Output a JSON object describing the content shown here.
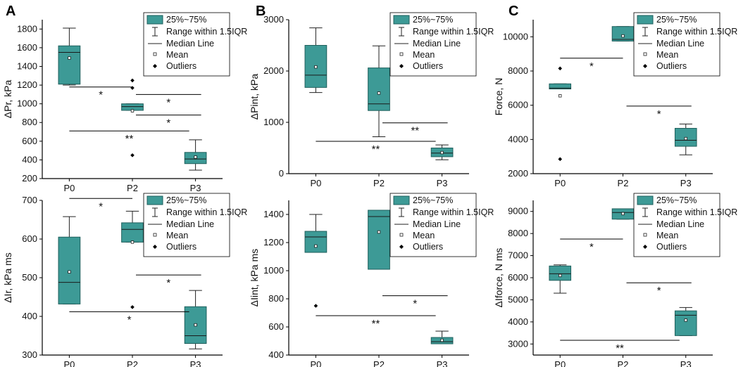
{
  "colors": {
    "box_fill": "#3d9a96",
    "box_stroke": "#1f5f5c",
    "axis": "#000000"
  },
  "legend": {
    "box_label": "25%~75%",
    "range_label": "Range within 1.5IQR",
    "median_label": "Median Line",
    "mean_label": "Mean",
    "outlier_label": "Outliers"
  },
  "chart_data": [
    {
      "panel": "A",
      "type": "box",
      "ylabel": "ΔPr, kPa",
      "categories": [
        "P0",
        "P2",
        "P3"
      ],
      "ylim": [
        200,
        1900
      ],
      "yticks": [
        200,
        400,
        600,
        800,
        1000,
        1200,
        1400,
        1600,
        1800
      ],
      "boxes": [
        {
          "q1": 1210,
          "q3": 1620,
          "median": 1550,
          "mean": 1490,
          "whisker_low": 1200,
          "whisker_high": 1810,
          "outliers": []
        },
        {
          "q1": 930,
          "q3": 1000,
          "median": 970,
          "mean": 925,
          "whisker_low": 930,
          "whisker_high": 1000,
          "outliers": [
            1250,
            1170,
            450
          ]
        },
        {
          "q1": 360,
          "q3": 480,
          "median": 410,
          "mean": 430,
          "whisker_low": 290,
          "whisker_high": 615,
          "outliers": []
        }
      ],
      "significance": [
        {
          "from": 0,
          "to": 1,
          "y": 1180,
          "label": "*"
        },
        {
          "from": 1,
          "to": 2,
          "y": 1100,
          "label": "*"
        },
        {
          "from": 1,
          "to": 2,
          "y": 880,
          "label": "*"
        },
        {
          "from": 0,
          "to": 1.9,
          "y": 710,
          "label": "**"
        }
      ]
    },
    {
      "panel": "B",
      "type": "box",
      "ylabel": "ΔPint, kPa",
      "categories": [
        "P0",
        "P2",
        "P3"
      ],
      "ylim": [
        0,
        3000
      ],
      "yticks": [
        0,
        1000,
        2000,
        3000
      ],
      "boxes": [
        {
          "q1": 1680,
          "q3": 2500,
          "median": 1920,
          "mean": 2080,
          "whisker_low": 1580,
          "whisker_high": 2840,
          "outliers": []
        },
        {
          "q1": 1230,
          "q3": 2060,
          "median": 1360,
          "mean": 1570,
          "whisker_low": 720,
          "whisker_high": 2490,
          "outliers": []
        },
        {
          "q1": 330,
          "q3": 500,
          "median": 400,
          "mean": 410,
          "whisker_low": 270,
          "whisker_high": 560,
          "outliers": []
        }
      ],
      "significance": [
        {
          "from": 1,
          "to": 2,
          "y": 990,
          "label": "**"
        },
        {
          "from": 0,
          "to": 1.9,
          "y": 630,
          "label": "**"
        }
      ]
    },
    {
      "panel": "C",
      "type": "box",
      "ylabel": "Force, N",
      "categories": [
        "P0",
        "P2",
        "P3"
      ],
      "ylim": [
        2000,
        11000
      ],
      "yticks": [
        2000,
        4000,
        6000,
        8000,
        10000
      ],
      "boxes": [
        {
          "q1": 6950,
          "q3": 7250,
          "median": 7000,
          "mean": 6550,
          "whisker_low": 6950,
          "whisker_high": 7250,
          "outliers": [
            8150,
            2850
          ]
        },
        {
          "q1": 9750,
          "q3": 10600,
          "median": 9850,
          "mean": 10050,
          "whisker_low": 9750,
          "whisker_high": 10600,
          "outliers": []
        },
        {
          "q1": 3600,
          "q3": 4650,
          "median": 3950,
          "mean": 4050,
          "whisker_low": 3100,
          "whisker_high": 4900,
          "outliers": []
        }
      ],
      "significance": [
        {
          "from": 0,
          "to": 1,
          "y": 8750,
          "label": "*"
        },
        {
          "from": 1,
          "to": 2,
          "y": 5950,
          "label": "*"
        }
      ]
    },
    {
      "panel": "",
      "type": "box",
      "ylabel": "ΔIr, kPa ms",
      "categories": [
        "P0",
        "P2",
        "P3"
      ],
      "ylim": [
        300,
        700
      ],
      "yticks": [
        300,
        400,
        500,
        600,
        700
      ],
      "boxes": [
        {
          "q1": 432,
          "q3": 605,
          "median": 488,
          "mean": 515,
          "whisker_low": 432,
          "whisker_high": 658,
          "outliers": []
        },
        {
          "q1": 592,
          "q3": 642,
          "median": 625,
          "mean": 592,
          "whisker_low": 592,
          "whisker_high": 672,
          "outliers": [
            424
          ]
        },
        {
          "q1": 330,
          "q3": 425,
          "median": 350,
          "mean": 378,
          "whisker_low": 316,
          "whisker_high": 467,
          "outliers": []
        }
      ],
      "significance": [
        {
          "from": 0,
          "to": 1,
          "y": 705,
          "label": "*"
        },
        {
          "from": 1,
          "to": 2,
          "y": 507,
          "label": "*"
        },
        {
          "from": 0,
          "to": 1.9,
          "y": 412,
          "label": "*"
        }
      ]
    },
    {
      "panel": "",
      "type": "box",
      "ylabel": "ΔIint, kPa ms",
      "categories": [
        "P0",
        "P2",
        "P3"
      ],
      "ylim": [
        400,
        1500
      ],
      "yticks": [
        400,
        600,
        800,
        1000,
        1200,
        1400
      ],
      "boxes": [
        {
          "q1": 1130,
          "q3": 1280,
          "median": 1240,
          "mean": 1175,
          "whisker_low": 1130,
          "whisker_high": 1400,
          "outliers": [
            750
          ]
        },
        {
          "q1": 1010,
          "q3": 1430,
          "median": 1385,
          "mean": 1275,
          "whisker_low": 1010,
          "whisker_high": 1430,
          "outliers": []
        },
        {
          "q1": 480,
          "q3": 525,
          "median": 495,
          "mean": 505,
          "whisker_low": 480,
          "whisker_high": 570,
          "outliers": []
        }
      ],
      "significance": [
        {
          "from": 1,
          "to": 2,
          "y": 822,
          "label": "*"
        },
        {
          "from": 0,
          "to": 1.9,
          "y": 680,
          "label": "**"
        }
      ]
    },
    {
      "panel": "",
      "type": "box",
      "ylabel": "ΔIforce, N ms",
      "categories": [
        "P0",
        "P2",
        "P3"
      ],
      "ylim": [
        2500,
        9500
      ],
      "yticks": [
        3000,
        4000,
        5000,
        6000,
        7000,
        8000,
        9000
      ],
      "boxes": [
        {
          "q1": 5880,
          "q3": 6530,
          "median": 6180,
          "mean": 6100,
          "whisker_low": 5300,
          "whisker_high": 6580,
          "outliers": []
        },
        {
          "q1": 8650,
          "q3": 9120,
          "median": 8950,
          "mean": 8900,
          "whisker_low": 8650,
          "whisker_high": 9120,
          "outliers": []
        },
        {
          "q1": 3380,
          "q3": 4500,
          "median": 4300,
          "mean": 4080,
          "whisker_low": 3380,
          "whisker_high": 4650,
          "outliers": []
        }
      ],
      "significance": [
        {
          "from": 0,
          "to": 1,
          "y": 7750,
          "label": "*"
        },
        {
          "from": 1,
          "to": 2,
          "y": 5770,
          "label": "*"
        },
        {
          "from": 0,
          "to": 1.9,
          "y": 3170,
          "label": "**"
        }
      ]
    }
  ]
}
